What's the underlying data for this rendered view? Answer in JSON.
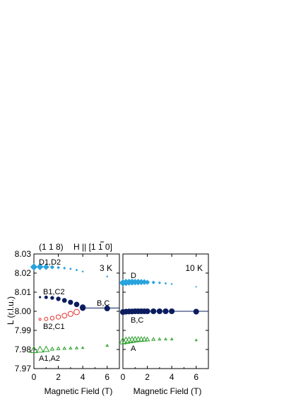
{
  "header": {
    "reflection": "(1 1 8)",
    "field_dir_prefix": "H || [",
    "field_dir_bar": "1",
    "field_dir_suffix": " 1 0]"
  },
  "colors": {
    "D": "#29a3dd",
    "B_upper": "#0b1d5e",
    "B_lower": "#e0302a",
    "A": "#2aa02a",
    "single": "#0b1d5e"
  },
  "chart_data": [
    {
      "type": "scatter",
      "panel_label": "3 K",
      "xlabel": "Magnetic Field  (T)",
      "ylabel": "L  (r.l.u.)",
      "xlim": [
        0,
        7
      ],
      "ylim": [
        7.97,
        8.03
      ],
      "xticks": [
        "0",
        "2",
        "4",
        "6"
      ],
      "yticks": [
        "7.97",
        "7.98",
        "7.99",
        "8.00",
        "8.01",
        "8.02",
        "8.03"
      ],
      "annotations": [
        "D1,D2",
        "B1,C2",
        "B2,C1",
        "B,C",
        "A1,A2"
      ],
      "series": [
        {
          "name": "D1,D2",
          "color_key": "D",
          "marker": "diamond-filled",
          "x": [
            0.0,
            0.5,
            1.0,
            1.5,
            2.0,
            2.5,
            3.0,
            3.5,
            4.0,
            6.0
          ],
          "y": [
            8.0232,
            8.0233,
            8.0232,
            8.0231,
            8.0229,
            8.0226,
            8.0222,
            8.0216,
            8.0208,
            8.0182
          ],
          "size": [
            1.0,
            0.95,
            0.85,
            0.6,
            0.45,
            0.4,
            0.35,
            0.35,
            0.3,
            0.3
          ]
        },
        {
          "name": "B1,C2",
          "color_key": "B_upper",
          "marker": "circle-filled",
          "x": [
            0.5,
            1.0,
            1.5,
            2.0,
            2.5,
            3.0,
            3.5,
            4.0
          ],
          "y": [
            8.0074,
            8.0073,
            8.007,
            8.0065,
            8.0057,
            8.0047,
            8.0036,
            8.0021
          ],
          "size": [
            0.35,
            0.55,
            0.6,
            0.7,
            0.75,
            0.8,
            0.85,
            0.9
          ]
        },
        {
          "name": "B2,C1",
          "color_key": "B_lower",
          "marker": "circle-open",
          "x": [
            0.5,
            1.0,
            1.5,
            2.0,
            2.5,
            3.0,
            3.5
          ],
          "y": [
            7.9958,
            7.996,
            7.9964,
            7.997,
            7.9977,
            7.9986,
            7.9996
          ],
          "size": [
            0.35,
            0.55,
            0.6,
            0.7,
            0.75,
            0.8,
            0.85
          ]
        },
        {
          "name": "B,C",
          "color_key": "single",
          "marker": "circle-filled",
          "x": [
            4.0,
            6.0
          ],
          "y": [
            8.0017,
            8.0015
          ],
          "size": [
            0.9,
            0.9
          ]
        },
        {
          "name": "A1,A2",
          "color_key": "A",
          "marker": "triangle-open",
          "x": [
            0.0,
            0.5,
            1.0,
            1.5,
            2.0,
            2.5,
            3.0,
            3.5,
            4.0,
            6.0
          ],
          "y": [
            7.9797,
            7.9799,
            7.9801,
            7.9803,
            7.9805,
            7.9806,
            7.9807,
            7.9808,
            7.9809,
            7.9821
          ],
          "size": [
            1.0,
            0.95,
            0.85,
            0.5,
            0.45,
            0.4,
            0.35,
            0.35,
            0.3,
            0.3
          ]
        }
      ],
      "fit_lines": [
        {
          "color_key": "single",
          "x": [
            4.0,
            7.0
          ],
          "y": [
            8.0017,
            8.0017
          ]
        }
      ]
    },
    {
      "type": "scatter",
      "panel_label": "10 K",
      "xlabel": "Magnetic Field  (T)",
      "xlim": [
        0,
        7
      ],
      "ylim": [
        7.97,
        8.03
      ],
      "xticks": [
        "0",
        "2",
        "4",
        "6"
      ],
      "annotations": [
        "D",
        "B,C",
        "A"
      ],
      "series": [
        {
          "name": "D",
          "color_key": "D",
          "marker": "diamond-filled",
          "x": [
            0.0,
            0.25,
            0.5,
            0.75,
            1.0,
            1.25,
            1.5,
            1.75,
            2.0,
            2.5,
            3.0,
            3.5,
            4.0,
            6.0
          ],
          "y": [
            8.0149,
            8.0151,
            8.0152,
            8.0153,
            8.0153,
            8.0153,
            8.0153,
            8.0153,
            8.0152,
            8.0151,
            8.0149,
            8.0146,
            8.0143,
            8.0128
          ],
          "size": [
            1.0,
            1.0,
            0.95,
            0.95,
            0.9,
            0.9,
            0.85,
            0.8,
            0.7,
            0.5,
            0.4,
            0.35,
            0.3,
            0.25
          ]
        },
        {
          "name": "B,C",
          "color_key": "single",
          "marker": "circle-filled",
          "x": [
            0.0,
            0.25,
            0.5,
            0.75,
            1.0,
            1.25,
            1.5,
            1.75,
            2.0,
            2.5,
            3.0,
            3.5,
            4.0,
            6.0
          ],
          "y": [
            7.9996,
            7.9998,
            7.9999,
            7.9999,
            8.0,
            8.0,
            8.0,
            8.0,
            8.0,
            8.0,
            8.0,
            8.0,
            8.0,
            7.9998
          ],
          "size": [
            0.9,
            0.9,
            0.9,
            0.9,
            0.9,
            0.9,
            0.9,
            0.9,
            0.9,
            0.9,
            0.9,
            0.9,
            0.9,
            0.9
          ]
        },
        {
          "name": "A",
          "color_key": "A",
          "marker": "triangle-open",
          "x": [
            0.0,
            0.25,
            0.5,
            0.75,
            1.0,
            1.25,
            1.5,
            1.75,
            2.0,
            2.5,
            3.0,
            3.5,
            4.0,
            6.0
          ],
          "y": [
            7.9843,
            7.9846,
            7.9848,
            7.985,
            7.9851,
            7.9852,
            7.9853,
            7.9853,
            7.9853,
            7.9854,
            7.9854,
            7.9854,
            7.9854,
            7.9849
          ],
          "size": [
            1.0,
            1.0,
            0.95,
            0.9,
            0.85,
            0.8,
            0.75,
            0.7,
            0.6,
            0.45,
            0.35,
            0.3,
            0.3,
            0.25
          ]
        }
      ],
      "fit_lines": [
        {
          "color_key": "single",
          "x": [
            0.0,
            7.0
          ],
          "y": [
            8.0,
            8.0
          ]
        }
      ]
    }
  ]
}
